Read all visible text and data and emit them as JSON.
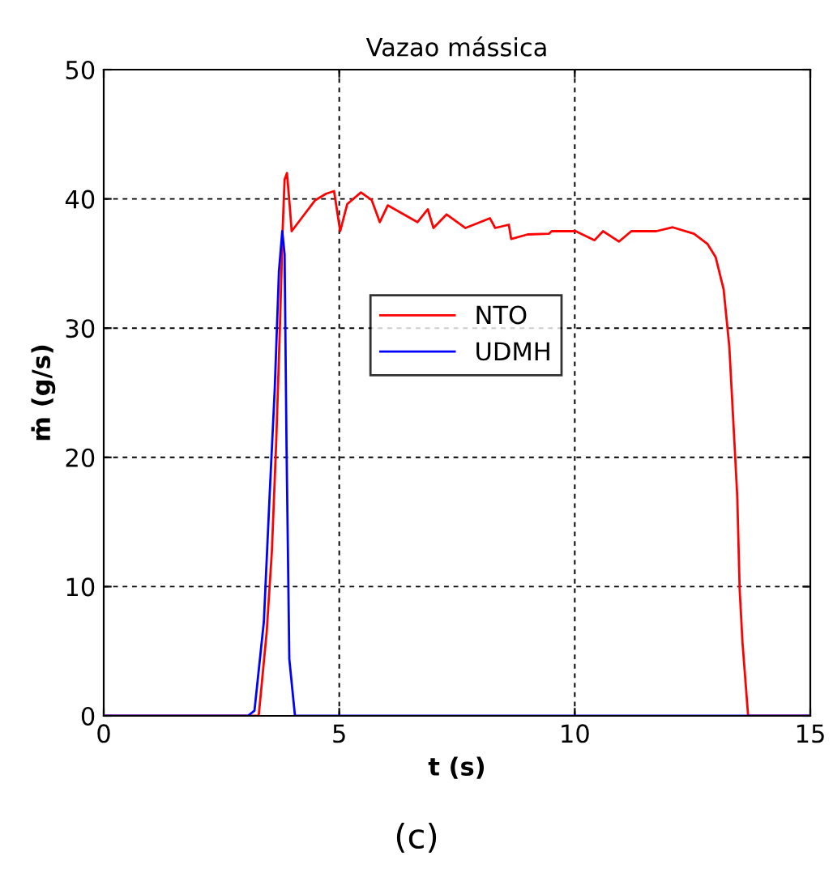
{
  "chart_data": {
    "type": "line",
    "title": "Vazao mássica",
    "xlabel": "t (s)",
    "ylabel": "ṁ (g/s)",
    "annotations": [
      "(c)"
    ],
    "xlim": [
      0,
      15
    ],
    "xticks": [
      0,
      5,
      10,
      15
    ],
    "ylim": [
      0,
      50
    ],
    "yticks": [
      0,
      10,
      20,
      30,
      40,
      50
    ],
    "grid": true,
    "legend": "top",
    "line_style": "solid",
    "marker": "none",
    "series": [
      {
        "name": "NTO",
        "color": "#ff0000",
        "x": [
          0,
          3.29,
          3.46,
          3.57,
          3.66,
          3.74,
          3.8,
          3.84,
          3.89,
          3.95,
          3.99,
          4.26,
          4.49,
          4.72,
          4.89,
          5.02,
          5.17,
          5.46,
          5.69,
          5.86,
          6.03,
          6.37,
          6.66,
          6.88,
          7.0,
          7.28,
          7.68,
          8.2,
          8.31,
          8.6,
          8.65,
          9.0,
          9.45,
          9.51,
          10.02,
          10.42,
          10.6,
          10.94,
          11.2,
          11.73,
          12.08,
          12.53,
          12.82,
          12.99,
          13.16,
          13.28,
          13.39,
          13.45,
          13.5,
          13.56,
          13.68,
          15
        ],
        "values": [
          0,
          0,
          6.5,
          12.75,
          21,
          30,
          37.75,
          41.5,
          42,
          39.4,
          37.5,
          38.8,
          39.9,
          40.4,
          40.6,
          37.5,
          39.6,
          40.5,
          39.9,
          38.2,
          39.5,
          38.8,
          38.2,
          39.2,
          37.75,
          38.8,
          37.75,
          38.5,
          37.75,
          38,
          36.9,
          37.25,
          37.3,
          37.5,
          37.5,
          36.8,
          37.5,
          36.7,
          37.5,
          37.5,
          37.8,
          37.3,
          36.5,
          35.5,
          33,
          28.6,
          21.1,
          16.9,
          9.8,
          5.7,
          0,
          0
        ]
      },
      {
        "name": "UDMH",
        "color": "#0000ff",
        "x": [
          0,
          3.06,
          3.2,
          3.4,
          3.52,
          3.63,
          3.72,
          3.79,
          3.84,
          3.88,
          3.94,
          4.06,
          15
        ],
        "values": [
          0,
          0,
          0.4,
          7.3,
          16.9,
          25.25,
          34.4,
          37.5,
          35.7,
          21.1,
          4.4,
          0,
          0
        ]
      }
    ]
  }
}
